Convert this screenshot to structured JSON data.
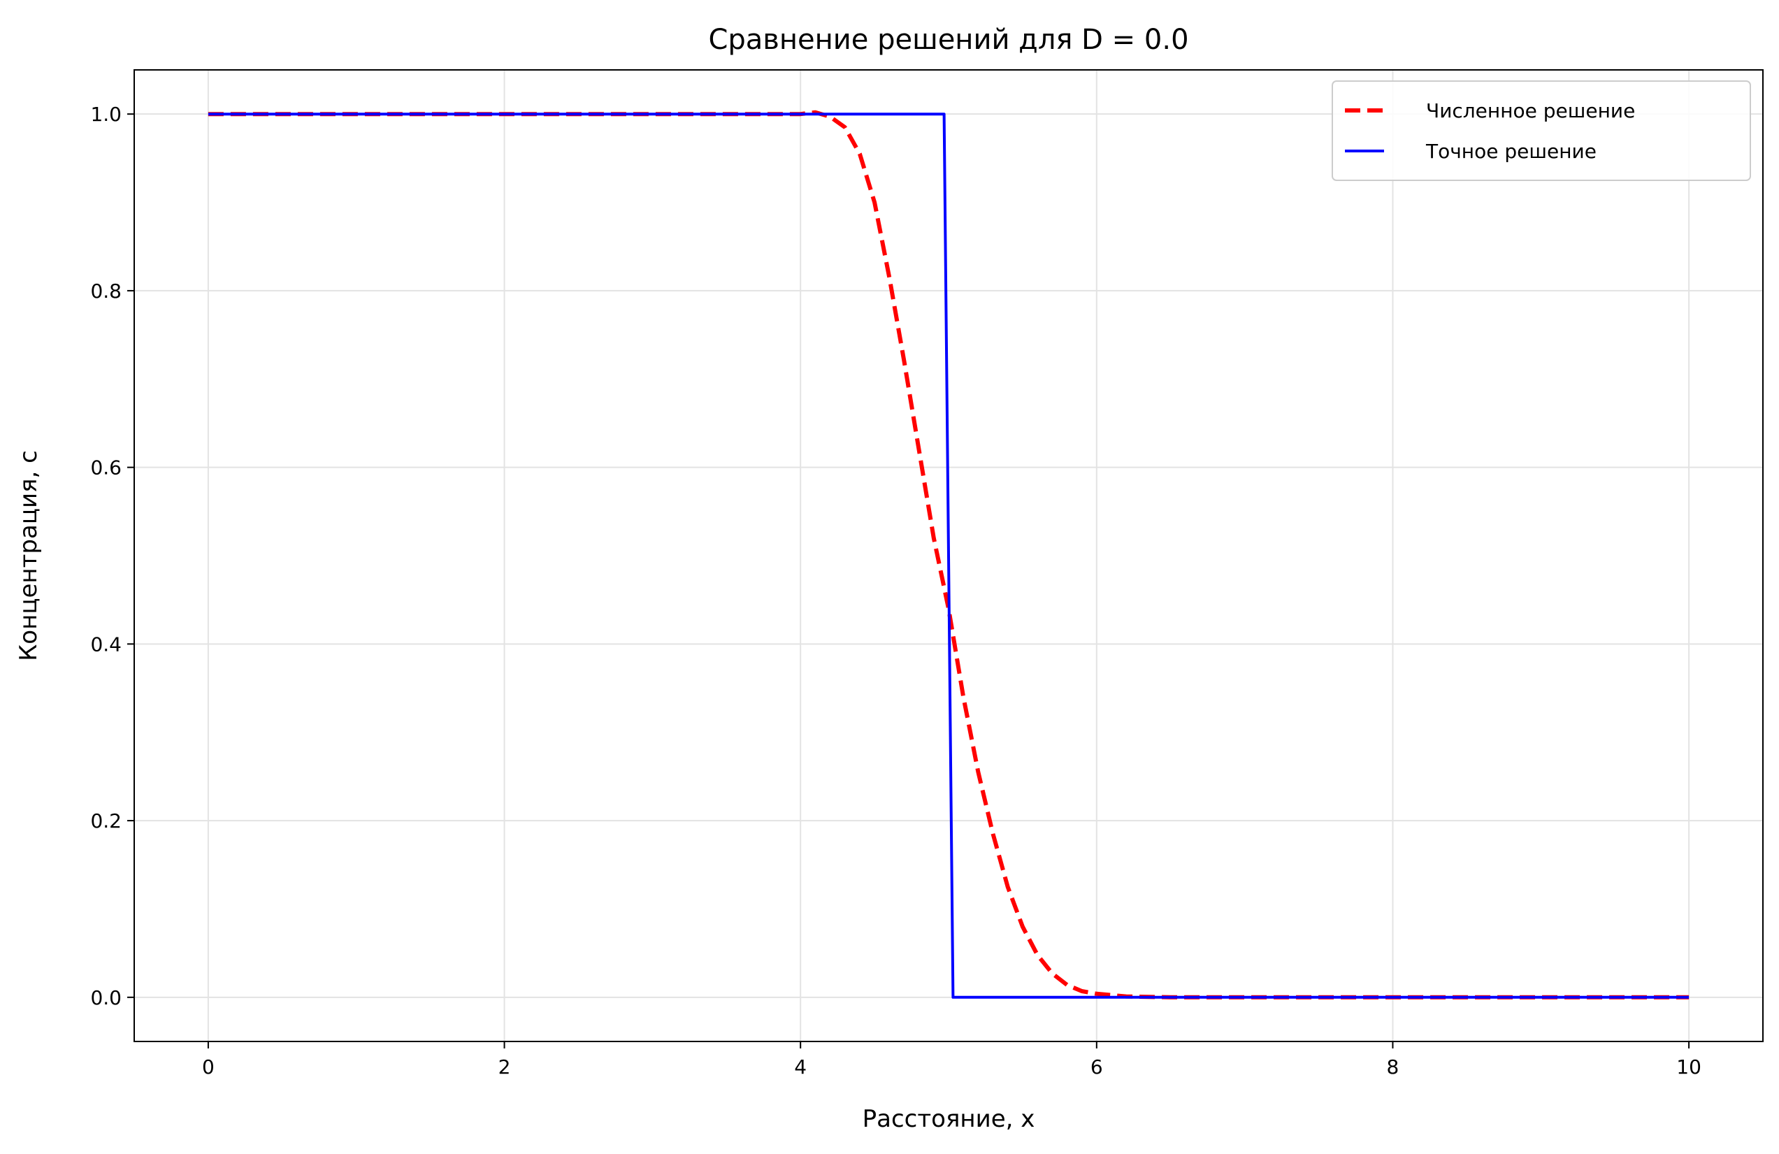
{
  "chart_data": {
    "type": "line",
    "title": "Сравнение решений для D = 0.0",
    "xlabel": "Расстояние, x",
    "ylabel": "Концентрация, c",
    "xlim": [
      -0.5,
      10.5
    ],
    "ylim": [
      -0.05,
      1.05
    ],
    "xticks": [
      0,
      2,
      4,
      6,
      8,
      10
    ],
    "xtick_labels": [
      "0",
      "2",
      "4",
      "6",
      "8",
      "10"
    ],
    "yticks": [
      0.0,
      0.2,
      0.4,
      0.6,
      0.8,
      1.0
    ],
    "ytick_labels": [
      "0.0",
      "0.2",
      "0.4",
      "0.6",
      "0.8",
      "1.0"
    ],
    "grid": true,
    "legend_position": "top-right",
    "series": [
      {
        "name": "Численное решение",
        "color": "#ff0000",
        "style": "dashed",
        "x": [
          0,
          1,
          2,
          3,
          4,
          4.1,
          4.2,
          4.3,
          4.4,
          4.5,
          4.6,
          4.7,
          4.8,
          4.9,
          5.0,
          5.1,
          5.2,
          5.3,
          5.4,
          5.5,
          5.6,
          5.7,
          5.8,
          5.9,
          6.0,
          6.2,
          6.5,
          7,
          8,
          9,
          10
        ],
        "y": [
          1.0,
          1.0,
          1.0,
          1.0,
          1.0,
          1.002,
          0.997,
          0.985,
          0.955,
          0.9,
          0.815,
          0.72,
          0.62,
          0.52,
          0.44,
          0.34,
          0.255,
          0.185,
          0.125,
          0.08,
          0.048,
          0.027,
          0.014,
          0.007,
          0.004,
          0.001,
          0.0,
          0.0,
          0.0,
          0.0,
          0.0
        ]
      },
      {
        "name": "Точное решение",
        "color": "#0000ff",
        "style": "solid",
        "x": [
          0,
          4.97,
          5.03,
          10
        ],
        "y": [
          1.0,
          1.0,
          0.0,
          0.0
        ]
      }
    ]
  }
}
